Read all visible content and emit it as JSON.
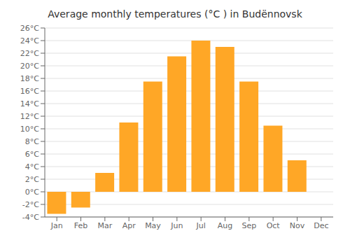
{
  "chart_data": {
    "type": "bar",
    "title": "Average monthly temperatures (°C ) in Budënnovsk",
    "categories": [
      "Jan",
      "Feb",
      "Mar",
      "Apr",
      "May",
      "Jun",
      "Jul",
      "Aug",
      "Sep",
      "Oct",
      "Nov",
      "Dec"
    ],
    "values": [
      -3.5,
      -2.5,
      3.0,
      11.0,
      17.5,
      21.5,
      24.0,
      23.0,
      17.5,
      10.5,
      5.0,
      0.0
    ],
    "color": "#FFA726",
    "ylim": [
      -4,
      26
    ],
    "yticks": [
      {
        "value": -4,
        "label": "-4°C"
      },
      {
        "value": -2,
        "label": "-2°C"
      },
      {
        "value": 0,
        "label": "0°C"
      },
      {
        "value": 2,
        "label": "2°C"
      },
      {
        "value": 4,
        "label": "4°C"
      },
      {
        "value": 6,
        "label": "6°C"
      },
      {
        "value": 8,
        "label": "8°C"
      },
      {
        "value": 10,
        "label": "10°C"
      },
      {
        "value": 12,
        "label": "12°C"
      },
      {
        "value": 14,
        "label": "14°C"
      },
      {
        "value": 16,
        "label": "16°C"
      },
      {
        "value": 18,
        "label": "18°C"
      },
      {
        "value": 20,
        "label": "20°C"
      },
      {
        "value": 22,
        "label": "22°C"
      },
      {
        "value": 24,
        "label": "24°C"
      },
      {
        "value": 26,
        "label": "26°C"
      }
    ],
    "grid": true
  }
}
